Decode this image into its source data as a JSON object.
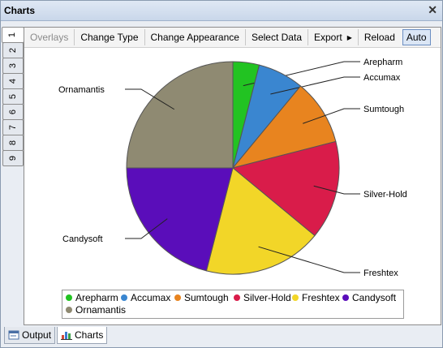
{
  "window": {
    "title": "Charts"
  },
  "vertical_tabs": [
    "1",
    "2",
    "3",
    "4",
    "5",
    "6",
    "7",
    "8",
    "9"
  ],
  "toolbar": {
    "overlays": "Overlays",
    "change_type": "Change Type",
    "change_appearance": "Change Appearance",
    "select_data": "Select Data",
    "export": "Export",
    "reload": "Reload",
    "auto": "Auto"
  },
  "chart_data": {
    "type": "pie",
    "categories": [
      "Arepharm",
      "Accumax",
      "Sumtough",
      "Silver-Hold",
      "Freshtex",
      "Candysoft",
      "Ornamantis"
    ],
    "values": [
      4,
      7,
      10,
      15,
      18,
      21,
      25
    ],
    "colors": [
      "#22c322",
      "#3a86d0",
      "#e8841f",
      "#d91c4a",
      "#f2d628",
      "#5a0dba",
      "#8f8a72"
    ],
    "legend_position": "bottom"
  },
  "bottom_tabs": {
    "output": "Output",
    "charts": "Charts"
  }
}
